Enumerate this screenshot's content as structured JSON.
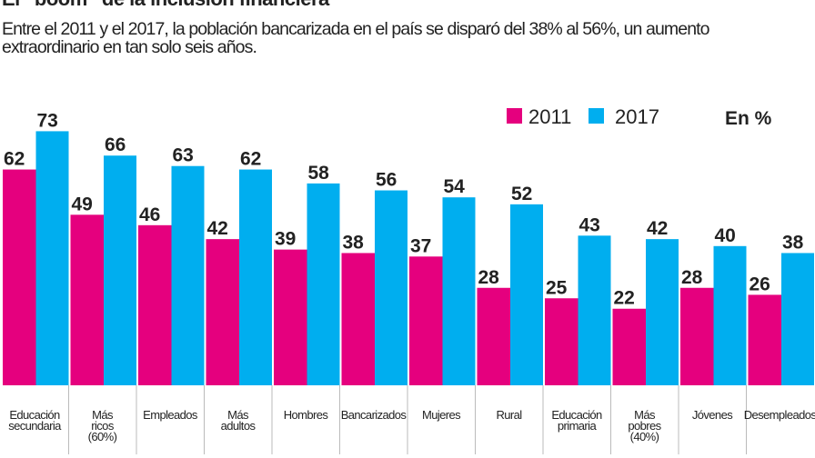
{
  "title": "El “boom” de la inclusión financiera",
  "subtitle": "Entre el 2011 y el 2017, la población bancarizada en el país se disparó del 38% al 56%, un aumento extraordinario en tan solo seis años.",
  "chart_data": {
    "type": "bar",
    "title": "El “boom” de la inclusión financiera",
    "unit_label": "En %",
    "categories": [
      [
        "Educación",
        "secundaria"
      ],
      [
        "Más",
        "ricos",
        "(60%)"
      ],
      [
        "Empleados"
      ],
      [
        "Más",
        "adultos"
      ],
      [
        "Hombres"
      ],
      [
        "Bancarizados"
      ],
      [
        "Mujeres"
      ],
      [
        "Rural"
      ],
      [
        "Educación",
        "primaria"
      ],
      [
        "Más",
        "pobres",
        "(40%)"
      ],
      [
        "Jóvenes"
      ],
      [
        "Desempleados"
      ]
    ],
    "series": [
      {
        "name": "2011",
        "color": "#e5007e",
        "values": [
          62,
          49,
          46,
          42,
          39,
          38,
          37,
          28,
          25,
          22,
          28,
          26
        ]
      },
      {
        "name": "2017",
        "color": "#00aeef",
        "values": [
          73,
          66,
          63,
          62,
          58,
          56,
          54,
          52,
          43,
          42,
          40,
          38
        ]
      }
    ],
    "ylim": [
      0,
      73
    ],
    "grid": false,
    "legend_position": "top-right",
    "data_labels": true
  }
}
